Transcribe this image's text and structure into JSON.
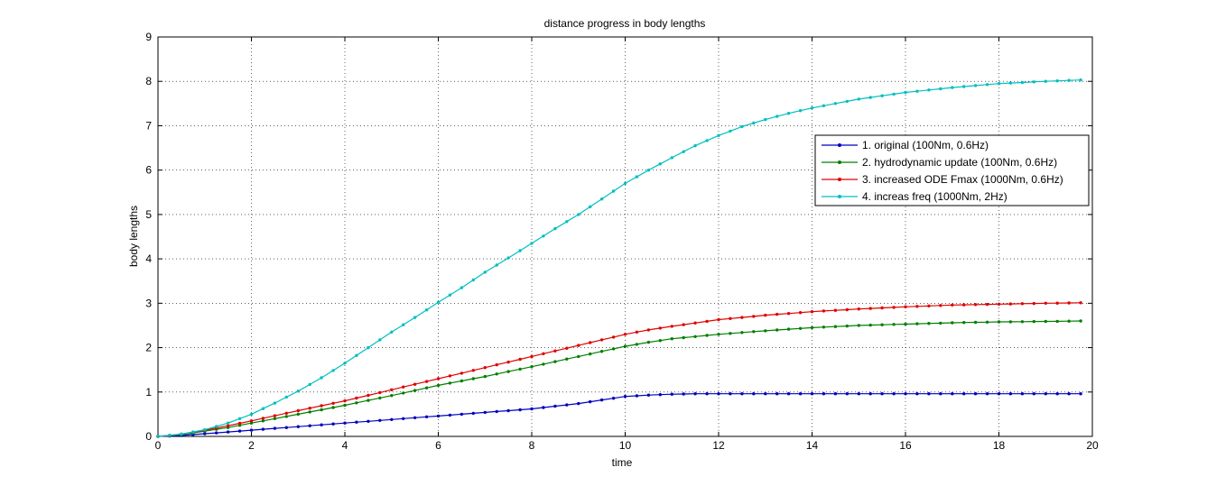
{
  "chart_data": {
    "type": "line",
    "title": "distance progress in body lengths",
    "xlabel": "time",
    "ylabel": "body lengths",
    "xlim": [
      0,
      20
    ],
    "ylim": [
      0,
      9
    ],
    "xticks": [
      0,
      2,
      4,
      6,
      8,
      10,
      12,
      14,
      16,
      18,
      20
    ],
    "yticks": [
      0,
      1,
      2,
      3,
      4,
      5,
      6,
      7,
      8,
      9
    ],
    "grid": true,
    "legend_position": "top-right",
    "sample_step": 0.25,
    "x_end": 19.75,
    "series": [
      {
        "name": "1. original (100Nm, 0.6Hz)",
        "color": "#0000bf",
        "x": [
          0,
          0.5,
          1,
          1.5,
          2,
          2.5,
          3,
          3.5,
          4,
          4.5,
          5,
          5.5,
          6,
          6.5,
          7,
          7.5,
          8,
          8.5,
          9,
          9.5,
          10,
          10.5,
          11,
          11.5,
          12,
          13,
          14,
          15,
          16,
          17,
          18,
          19,
          19.75
        ],
        "y": [
          0,
          0.02,
          0.06,
          0.1,
          0.14,
          0.18,
          0.22,
          0.26,
          0.3,
          0.34,
          0.38,
          0.42,
          0.46,
          0.5,
          0.54,
          0.58,
          0.62,
          0.68,
          0.74,
          0.82,
          0.9,
          0.93,
          0.95,
          0.96,
          0.96,
          0.96,
          0.96,
          0.96,
          0.96,
          0.96,
          0.96,
          0.96,
          0.96
        ]
      },
      {
        "name": "2. hydrodynamic update (100Nm, 0.6Hz)",
        "color": "#007f00",
        "x": [
          0,
          0.5,
          1,
          1.5,
          2,
          3,
          4,
          5,
          6,
          7,
          8,
          9,
          10,
          10.5,
          11,
          12,
          13,
          14,
          15,
          16,
          17,
          18,
          19,
          19.75
        ],
        "y": [
          0,
          0.04,
          0.12,
          0.2,
          0.3,
          0.5,
          0.7,
          0.92,
          1.15,
          1.35,
          1.57,
          1.8,
          2.03,
          2.12,
          2.2,
          2.3,
          2.38,
          2.45,
          2.5,
          2.53,
          2.56,
          2.58,
          2.59,
          2.6
        ]
      },
      {
        "name": "3. increased ODE Fmax (1000Nm, 0.6Hz)",
        "color": "#e00000",
        "x": [
          0,
          0.5,
          1,
          1.5,
          2,
          3,
          4,
          5,
          6,
          7,
          8,
          9,
          10,
          10.5,
          11,
          12,
          13,
          14,
          15,
          16,
          17,
          18,
          19,
          19.75
        ],
        "y": [
          0,
          0.05,
          0.14,
          0.24,
          0.35,
          0.58,
          0.8,
          1.05,
          1.3,
          1.55,
          1.8,
          2.05,
          2.3,
          2.4,
          2.48,
          2.63,
          2.73,
          2.81,
          2.87,
          2.92,
          2.96,
          2.98,
          3.0,
          3.01
        ]
      },
      {
        "name": "4. increas freq (1000Nm, 2Hz)",
        "color": "#00bfbf",
        "x": [
          0,
          0.5,
          1,
          1.5,
          2,
          2.5,
          3,
          3.5,
          4,
          4.5,
          5,
          5.5,
          6,
          6.5,
          7,
          7.5,
          8,
          8.5,
          9,
          9.5,
          10,
          10.5,
          11,
          11.5,
          12,
          12.5,
          13,
          13.5,
          14,
          15,
          16,
          17,
          18,
          19,
          19.75
        ],
        "y": [
          0,
          0.05,
          0.15,
          0.3,
          0.5,
          0.75,
          1.02,
          1.32,
          1.65,
          2.0,
          2.35,
          2.68,
          3.02,
          3.35,
          3.7,
          4.02,
          4.35,
          4.68,
          5.0,
          5.35,
          5.7,
          6.0,
          6.28,
          6.55,
          6.78,
          6.98,
          7.14,
          7.28,
          7.4,
          7.6,
          7.75,
          7.86,
          7.95,
          8.0,
          8.03
        ]
      }
    ]
  }
}
